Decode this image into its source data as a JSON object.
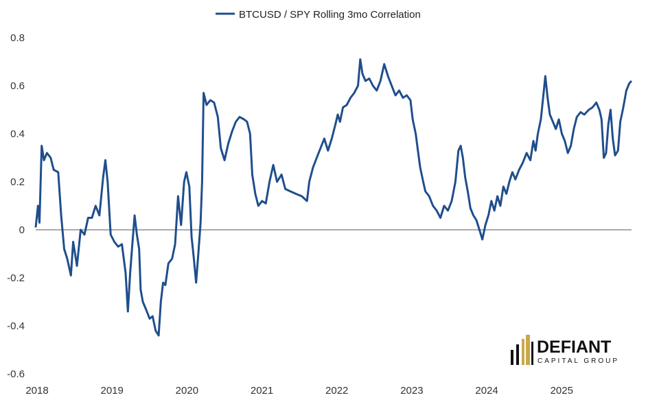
{
  "chart_data": {
    "type": "line",
    "title": "",
    "legend": [
      "BTCUSD / SPY Rolling 3mo Correlation"
    ],
    "legend_position": "top-center",
    "xlabel": "",
    "ylabel": "",
    "ylim": [
      -0.6,
      0.8
    ],
    "yticks": [
      "0.8",
      "0.6",
      "0.4",
      "0.2",
      "0",
      "-0.2",
      "-0.4",
      "-0.6"
    ],
    "xlim": [
      2018.0,
      2025.95
    ],
    "xticks": [
      "2018",
      "2019",
      "2020",
      "2021",
      "2022",
      "2023",
      "2024",
      "2025"
    ],
    "zero_line": true,
    "series": [
      {
        "name": "BTCUSD / SPY Rolling 3mo Correlation",
        "color": "#1f4e8c",
        "points": [
          [
            2018.0,
            0.01
          ],
          [
            2018.03,
            0.1
          ],
          [
            2018.05,
            0.03
          ],
          [
            2018.08,
            0.35
          ],
          [
            2018.11,
            0.29
          ],
          [
            2018.15,
            0.32
          ],
          [
            2018.2,
            0.3
          ],
          [
            2018.24,
            0.25
          ],
          [
            2018.3,
            0.24
          ],
          [
            2018.34,
            0.06
          ],
          [
            2018.38,
            -0.08
          ],
          [
            2018.42,
            -0.12
          ],
          [
            2018.47,
            -0.19
          ],
          [
            2018.5,
            -0.05
          ],
          [
            2018.55,
            -0.15
          ],
          [
            2018.6,
            0.0
          ],
          [
            2018.65,
            -0.02
          ],
          [
            2018.7,
            0.05
          ],
          [
            2018.75,
            0.05
          ],
          [
            2018.8,
            0.1
          ],
          [
            2018.85,
            0.06
          ],
          [
            2018.9,
            0.22
          ],
          [
            2018.93,
            0.29
          ],
          [
            2018.96,
            0.2
          ],
          [
            2019.0,
            -0.02
          ],
          [
            2019.05,
            -0.05
          ],
          [
            2019.1,
            -0.07
          ],
          [
            2019.15,
            -0.06
          ],
          [
            2019.2,
            -0.18
          ],
          [
            2019.23,
            -0.34
          ],
          [
            2019.26,
            -0.18
          ],
          [
            2019.29,
            -0.06
          ],
          [
            2019.32,
            0.06
          ],
          [
            2019.35,
            -0.02
          ],
          [
            2019.38,
            -0.08
          ],
          [
            2019.4,
            -0.25
          ],
          [
            2019.43,
            -0.3
          ],
          [
            2019.47,
            -0.33
          ],
          [
            2019.52,
            -0.37
          ],
          [
            2019.56,
            -0.36
          ],
          [
            2019.6,
            -0.42
          ],
          [
            2019.64,
            -0.44
          ],
          [
            2019.67,
            -0.3
          ],
          [
            2019.7,
            -0.22
          ],
          [
            2019.73,
            -0.23
          ],
          [
            2019.77,
            -0.14
          ],
          [
            2019.82,
            -0.12
          ],
          [
            2019.86,
            -0.06
          ],
          [
            2019.9,
            0.14
          ],
          [
            2019.94,
            0.02
          ],
          [
            2019.98,
            0.2
          ],
          [
            2020.01,
            0.24
          ],
          [
            2020.05,
            0.18
          ],
          [
            2020.08,
            -0.03
          ],
          [
            2020.11,
            -0.12
          ],
          [
            2020.14,
            -0.22
          ],
          [
            2020.17,
            -0.1
          ],
          [
            2020.2,
            0.03
          ],
          [
            2020.22,
            0.2
          ],
          [
            2020.24,
            0.57
          ],
          [
            2020.28,
            0.52
          ],
          [
            2020.33,
            0.54
          ],
          [
            2020.38,
            0.53
          ],
          [
            2020.43,
            0.47
          ],
          [
            2020.47,
            0.34
          ],
          [
            2020.52,
            0.29
          ],
          [
            2020.57,
            0.36
          ],
          [
            2020.62,
            0.41
          ],
          [
            2020.67,
            0.45
          ],
          [
            2020.72,
            0.47
          ],
          [
            2020.78,
            0.46
          ],
          [
            2020.82,
            0.45
          ],
          [
            2020.86,
            0.4
          ],
          [
            2020.89,
            0.23
          ],
          [
            2020.93,
            0.15
          ],
          [
            2020.97,
            0.1
          ],
          [
            2021.02,
            0.12
          ],
          [
            2021.07,
            0.11
          ],
          [
            2021.12,
            0.2
          ],
          [
            2021.17,
            0.27
          ],
          [
            2021.22,
            0.2
          ],
          [
            2021.28,
            0.23
          ],
          [
            2021.33,
            0.17
          ],
          [
            2021.4,
            0.16
          ],
          [
            2021.47,
            0.15
          ],
          [
            2021.55,
            0.14
          ],
          [
            2021.62,
            0.12
          ],
          [
            2021.65,
            0.2
          ],
          [
            2021.7,
            0.26
          ],
          [
            2021.75,
            0.3
          ],
          [
            2021.8,
            0.34
          ],
          [
            2021.85,
            0.38
          ],
          [
            2021.9,
            0.33
          ],
          [
            2021.95,
            0.38
          ],
          [
            2022.0,
            0.44
          ],
          [
            2022.03,
            0.48
          ],
          [
            2022.06,
            0.45
          ],
          [
            2022.1,
            0.51
          ],
          [
            2022.15,
            0.52
          ],
          [
            2022.2,
            0.55
          ],
          [
            2022.25,
            0.57
          ],
          [
            2022.3,
            0.6
          ],
          [
            2022.33,
            0.71
          ],
          [
            2022.36,
            0.65
          ],
          [
            2022.4,
            0.62
          ],
          [
            2022.45,
            0.63
          ],
          [
            2022.5,
            0.6
          ],
          [
            2022.55,
            0.58
          ],
          [
            2022.6,
            0.62
          ],
          [
            2022.65,
            0.69
          ],
          [
            2022.7,
            0.64
          ],
          [
            2022.75,
            0.6
          ],
          [
            2022.8,
            0.56
          ],
          [
            2022.85,
            0.58
          ],
          [
            2022.9,
            0.55
          ],
          [
            2022.95,
            0.56
          ],
          [
            2023.0,
            0.54
          ],
          [
            2023.03,
            0.46
          ],
          [
            2023.07,
            0.4
          ],
          [
            2023.1,
            0.33
          ],
          [
            2023.13,
            0.26
          ],
          [
            2023.17,
            0.2
          ],
          [
            2023.2,
            0.16
          ],
          [
            2023.25,
            0.14
          ],
          [
            2023.3,
            0.1
          ],
          [
            2023.35,
            0.08
          ],
          [
            2023.4,
            0.05
          ],
          [
            2023.45,
            0.1
          ],
          [
            2023.5,
            0.08
          ],
          [
            2023.55,
            0.12
          ],
          [
            2023.6,
            0.2
          ],
          [
            2023.64,
            0.33
          ],
          [
            2023.67,
            0.35
          ],
          [
            2023.7,
            0.3
          ],
          [
            2023.73,
            0.22
          ],
          [
            2023.77,
            0.15
          ],
          [
            2023.8,
            0.09
          ],
          [
            2023.84,
            0.06
          ],
          [
            2023.88,
            0.04
          ],
          [
            2023.92,
            0.0
          ],
          [
            2023.96,
            -0.04
          ],
          [
            2024.0,
            0.02
          ],
          [
            2024.04,
            0.06
          ],
          [
            2024.08,
            0.12
          ],
          [
            2024.12,
            0.08
          ],
          [
            2024.16,
            0.14
          ],
          [
            2024.2,
            0.1
          ],
          [
            2024.24,
            0.18
          ],
          [
            2024.28,
            0.15
          ],
          [
            2024.32,
            0.2
          ],
          [
            2024.36,
            0.24
          ],
          [
            2024.4,
            0.21
          ],
          [
            2024.45,
            0.25
          ],
          [
            2024.5,
            0.28
          ],
          [
            2024.55,
            0.32
          ],
          [
            2024.6,
            0.29
          ],
          [
            2024.64,
            0.37
          ],
          [
            2024.67,
            0.33
          ],
          [
            2024.7,
            0.4
          ],
          [
            2024.74,
            0.46
          ],
          [
            2024.77,
            0.55
          ],
          [
            2024.8,
            0.64
          ],
          [
            2024.83,
            0.55
          ],
          [
            2024.86,
            0.48
          ],
          [
            2024.9,
            0.45
          ],
          [
            2024.94,
            0.42
          ],
          [
            2024.98,
            0.46
          ],
          [
            2025.02,
            0.4
          ],
          [
            2025.06,
            0.37
          ],
          [
            2025.1,
            0.32
          ],
          [
            2025.14,
            0.35
          ],
          [
            2025.18,
            0.42
          ],
          [
            2025.22,
            0.47
          ],
          [
            2025.27,
            0.49
          ],
          [
            2025.32,
            0.48
          ],
          [
            2025.38,
            0.5
          ],
          [
            2025.43,
            0.51
          ],
          [
            2025.48,
            0.53
          ],
          [
            2025.52,
            0.5
          ],
          [
            2025.55,
            0.46
          ],
          [
            2025.58,
            0.3
          ],
          [
            2025.61,
            0.32
          ],
          [
            2025.64,
            0.44
          ],
          [
            2025.67,
            0.5
          ],
          [
            2025.7,
            0.38
          ],
          [
            2025.73,
            0.31
          ],
          [
            2025.77,
            0.33
          ],
          [
            2025.8,
            0.45
          ],
          [
            2025.84,
            0.51
          ],
          [
            2025.88,
            0.58
          ],
          [
            2025.92,
            0.61
          ],
          [
            2025.95,
            0.62
          ]
        ]
      }
    ]
  },
  "logo": {
    "wordmark": "DEFIANT",
    "tagline": "CAPITAL GROUP",
    "accent_color": "#c9a84c",
    "dark_color": "#111111"
  }
}
